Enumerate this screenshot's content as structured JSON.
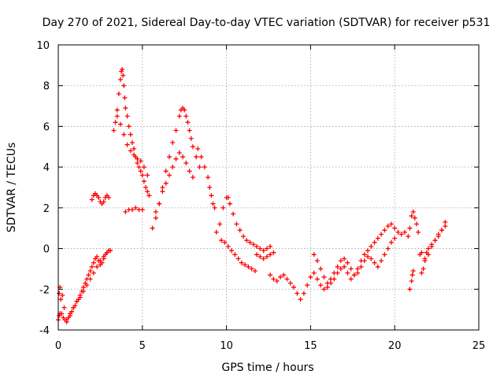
{
  "chart_data": {
    "type": "scatter",
    "title": "Day 270 of 2021, Sidereal Day-to-day VTEC variation (SDTVAR) for receiver p531",
    "xlabel": "GPS time / hours",
    "ylabel": "SDTVAR / TECUs",
    "xlim": [
      0,
      25
    ],
    "ylim": [
      -4,
      10
    ],
    "xticks": [
      "0",
      "5",
      "10",
      "15",
      "20",
      "25"
    ],
    "yticks": [
      "-4",
      "-2",
      "0",
      "2",
      "4",
      "6",
      "8",
      "10"
    ],
    "grid": true,
    "marker": "+",
    "color": "#ff0000",
    "series": [
      {
        "name": "SDTVAR",
        "x": [
          0.0,
          0.05,
          0.1,
          0.2,
          0.3,
          0.4,
          0.5,
          0.6,
          0.7,
          0.8,
          0.9,
          1.0,
          1.1,
          1.2,
          1.3,
          1.4,
          1.5,
          1.6,
          1.7,
          1.8,
          1.9,
          2.0,
          2.1,
          2.2,
          2.3,
          2.4,
          2.5,
          2.6,
          2.7,
          2.8,
          2.9,
          3.0,
          3.1,
          0.05,
          0.1,
          0.15,
          0.25,
          0.35,
          0.5,
          0.7,
          0.9,
          1.1,
          1.3,
          1.5,
          1.7,
          1.9,
          2.1,
          2.3,
          2.5,
          2.7,
          2.9,
          2.0,
          2.1,
          2.2,
          2.3,
          2.4,
          2.5,
          2.6,
          2.7,
          2.8,
          2.9,
          3.0,
          3.3,
          3.4,
          3.5,
          3.6,
          3.7,
          3.75,
          3.8,
          3.85,
          3.9,
          3.95,
          4.0,
          4.1,
          4.2,
          4.3,
          4.4,
          4.5,
          4.6,
          4.7,
          4.8,
          4.9,
          5.0,
          5.1,
          5.2,
          5.3,
          5.4,
          3.5,
          3.7,
          3.9,
          4.1,
          4.3,
          4.5,
          4.7,
          4.9,
          5.1,
          5.3,
          4.0,
          4.2,
          4.4,
          4.6,
          4.8,
          5.0,
          5.6,
          5.8,
          6.0,
          6.2,
          6.4,
          6.6,
          6.8,
          7.0,
          7.2,
          7.3,
          7.4,
          7.5,
          7.6,
          7.7,
          7.8,
          7.9,
          8.0,
          8.2,
          8.4,
          5.8,
          6.0,
          6.2,
          6.4,
          6.6,
          6.8,
          7.0,
          7.2,
          7.4,
          7.6,
          7.8,
          8.0,
          8.3,
          8.5,
          8.7,
          8.9,
          9.0,
          9.1,
          9.2,
          9.3,
          9.4,
          9.6,
          9.8,
          10.0,
          10.1,
          10.2,
          10.4,
          10.6,
          10.8,
          11.0,
          11.2,
          11.4,
          11.6,
          11.8,
          12.0,
          12.2,
          12.4,
          12.6,
          9.7,
          9.9,
          10.1,
          10.3,
          10.5,
          10.7,
          10.9,
          11.1,
          11.3,
          11.5,
          11.7,
          11.8,
          12.0,
          12.2,
          12.4,
          12.6,
          12.8,
          12.6,
          12.8,
          13.0,
          13.2,
          13.4,
          13.6,
          13.8,
          14.0,
          14.2,
          14.4,
          14.6,
          14.8,
          15.0,
          15.2,
          15.4,
          15.6,
          15.8,
          16.0,
          16.2,
          16.4,
          16.6,
          16.8,
          17.0,
          17.2,
          17.4,
          17.6,
          17.8,
          18.0,
          18.2,
          18.4,
          18.6,
          18.8,
          19.0,
          19.2,
          19.4,
          19.6,
          19.8,
          20.0,
          20.2,
          20.4,
          20.6,
          15.2,
          15.4,
          15.6,
          15.8,
          16.0,
          16.2,
          16.4,
          16.6,
          16.8,
          17.0,
          17.2,
          17.4,
          17.6,
          17.8,
          18.0,
          18.2,
          18.4,
          18.6,
          18.8,
          19.0,
          19.2,
          19.4,
          19.6,
          19.8,
          20.0,
          20.8,
          20.9,
          21.0,
          21.1,
          21.2,
          21.3,
          21.4,
          21.5,
          21.6,
          21.7,
          21.8,
          21.9,
          22.0,
          22.2,
          22.4,
          22.6,
          22.8,
          23.0,
          20.9,
          21.0,
          21.05,
          21.1,
          21.6,
          21.8,
          22.0,
          22.2,
          22.4,
          22.6,
          22.8,
          23.0
        ],
        "y": [
          -3.5,
          -3.3,
          -3.2,
          -3.2,
          -3.4,
          -3.5,
          -3.5,
          -3.4,
          -3.3,
          -3.1,
          -2.9,
          -2.8,
          -2.6,
          -2.5,
          -2.3,
          -2.1,
          -1.9,
          -1.7,
          -1.5,
          -1.3,
          -1.1,
          -0.9,
          -0.7,
          -0.5,
          -0.4,
          -0.6,
          -0.8,
          -0.7,
          -0.5,
          -0.3,
          -0.2,
          -0.1,
          -0.1,
          -2.2,
          -1.9,
          -2.5,
          -2.3,
          -2.9,
          -3.6,
          -3.2,
          -2.9,
          -2.6,
          -2.4,
          -2.1,
          -1.8,
          -1.5,
          -1.2,
          -0.9,
          -0.6,
          -0.4,
          -0.2,
          2.4,
          2.6,
          2.7,
          2.6,
          2.5,
          2.3,
          2.2,
          2.3,
          2.5,
          2.6,
          2.5,
          5.8,
          6.2,
          6.8,
          7.6,
          8.3,
          8.7,
          8.8,
          8.5,
          8.0,
          7.4,
          6.9,
          6.5,
          6.0,
          5.6,
          5.2,
          4.9,
          4.5,
          4.2,
          4.0,
          3.8,
          3.6,
          3.3,
          3.0,
          2.8,
          2.6,
          6.5,
          6.1,
          5.6,
          5.1,
          4.8,
          4.6,
          4.4,
          4.3,
          4.0,
          3.6,
          1.8,
          1.9,
          1.9,
          2.0,
          1.9,
          1.9,
          1.0,
          1.5,
          2.2,
          3.0,
          3.8,
          4.5,
          5.2,
          5.8,
          6.5,
          6.8,
          6.9,
          6.8,
          6.5,
          6.2,
          5.8,
          5.4,
          5.0,
          4.5,
          4.0,
          1.8,
          2.2,
          2.8,
          3.2,
          3.6,
          4.0,
          4.4,
          4.7,
          4.5,
          4.2,
          3.8,
          3.5,
          4.9,
          4.5,
          4.0,
          3.5,
          3.0,
          2.6,
          2.2,
          2.0,
          0.8,
          1.2,
          2.0,
          2.5,
          2.5,
          2.2,
          1.7,
          1.2,
          0.9,
          0.6,
          0.4,
          0.3,
          0.2,
          0.1,
          0.0,
          -0.1,
          0.0,
          0.1,
          0.4,
          0.3,
          0.1,
          -0.1,
          -0.3,
          -0.5,
          -0.7,
          -0.8,
          -0.9,
          -1.0,
          -1.1,
          -0.3,
          -0.4,
          -0.5,
          -0.4,
          -0.3,
          -0.2,
          -1.3,
          -1.5,
          -1.6,
          -1.4,
          -1.3,
          -1.5,
          -1.7,
          -1.9,
          -2.2,
          -2.5,
          -2.2,
          -1.8,
          -1.4,
          -1.2,
          -1.5,
          -1.8,
          -2.0,
          -1.9,
          -1.7,
          -1.5,
          -1.2,
          -1.0,
          -0.9,
          -1.2,
          -1.5,
          -1.3,
          -1.0,
          -0.6,
          -0.3,
          -0.1,
          0.1,
          0.3,
          0.5,
          0.7,
          0.9,
          1.1,
          1.2,
          1.0,
          0.8,
          0.7,
          0.8,
          -0.3,
          -0.6,
          -1.0,
          -1.4,
          -1.7,
          -1.5,
          -1.2,
          -0.9,
          -0.6,
          -0.5,
          -0.7,
          -1.0,
          -1.3,
          -1.2,
          -0.9,
          -0.6,
          -0.4,
          -0.5,
          -0.7,
          -0.9,
          -0.6,
          -0.3,
          0.0,
          0.3,
          0.5,
          0.6,
          1.0,
          1.6,
          1.8,
          1.5,
          1.2,
          0.8,
          -0.3,
          -1.2,
          -1.0,
          -0.5,
          -0.2,
          0.0,
          0.2,
          0.4,
          0.6,
          0.9,
          1.3,
          -2.0,
          -1.6,
          -1.3,
          -1.1,
          -0.2,
          -0.6,
          -0.3,
          0.1,
          0.4,
          0.7,
          0.9,
          1.1
        ]
      }
    ]
  }
}
